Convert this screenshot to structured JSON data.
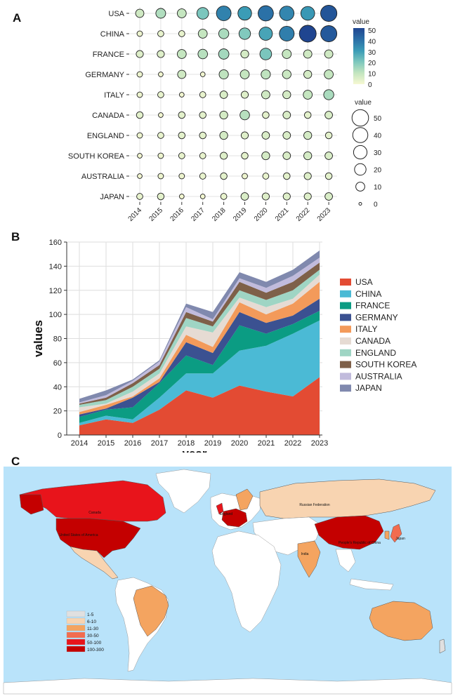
{
  "panels": {
    "a": "A",
    "b": "B",
    "c": "C"
  },
  "chart_data": [
    {
      "type": "scatter",
      "subtype": "bubble-heatmap",
      "years": [
        "2014",
        "2015",
        "2016",
        "2017",
        "2018",
        "2019",
        "2020",
        "2021",
        "2022",
        "2023"
      ],
      "countries": [
        "USA",
        "CHINA",
        "FRANCE",
        "GERMANY",
        "ITALY",
        "CANADA",
        "ENGLAND",
        "SOUTH KOREA",
        "AUSTRALIA",
        "JAPAN"
      ],
      "values": [
        [
          8,
          13,
          10,
          21,
          37,
          31,
          41,
          36,
          32,
          48
        ],
        [
          2,
          3,
          3,
          10,
          14,
          20,
          29,
          38,
          52,
          47
        ],
        [
          5,
          5,
          10,
          12,
          15,
          7,
          21,
          10,
          8,
          8
        ],
        [
          2,
          1,
          8,
          1,
          11,
          10,
          11,
          9,
          7,
          10
        ],
        [
          2,
          3,
          1,
          3,
          6,
          5,
          8,
          7,
          10,
          14
        ],
        [
          4,
          1,
          4,
          4,
          7,
          12,
          4,
          6,
          4,
          6
        ],
        [
          2,
          3,
          4,
          4,
          7,
          5,
          6,
          6,
          7,
          4
        ],
        [
          1,
          2,
          3,
          3,
          5,
          4,
          7,
          6,
          7,
          6
        ],
        [
          1,
          2,
          2,
          3,
          4,
          2,
          3,
          4,
          5,
          4
        ],
        [
          3,
          4,
          1,
          1,
          3,
          6,
          5,
          5,
          5,
          6
        ]
      ],
      "color_legend": {
        "title": "value",
        "ticks": [
          "50",
          "40",
          "30",
          "20",
          "10",
          "0"
        ],
        "max": 52,
        "colors": [
          "#f7f8d2",
          "#c3e5bf",
          "#7cc7bd",
          "#3a9bb6",
          "#2a6ea6",
          "#1f4590"
        ]
      },
      "size_legend": {
        "title": "value",
        "ticks": [
          50,
          40,
          30,
          20,
          10,
          0
        ]
      }
    },
    {
      "type": "area",
      "stacked": true,
      "x": [
        "2014",
        "2015",
        "2016",
        "2017",
        "2018",
        "2019",
        "2020",
        "2021",
        "2022",
        "2023"
      ],
      "xlabel": "year",
      "ylabel": "values",
      "ylim": [
        0,
        160
      ],
      "yticks": [
        "0",
        "20",
        "40",
        "60",
        "80",
        "100",
        "120",
        "140",
        "160"
      ],
      "series": [
        {
          "name": "USA",
          "color": "#e34b33",
          "values": [
            8,
            13,
            10,
            21,
            37,
            31,
            41,
            36,
            32,
            48
          ]
        },
        {
          "name": "CHINA",
          "color": "#4bbad5",
          "values": [
            2,
            3,
            3,
            10,
            14,
            20,
            29,
            38,
            52,
            47
          ]
        },
        {
          "name": "FRANCE",
          "color": "#0b9c83",
          "values": [
            5,
            5,
            10,
            12,
            15,
            7,
            21,
            10,
            8,
            8
          ]
        },
        {
          "name": "GERMANY",
          "color": "#3b5191",
          "values": [
            2,
            1,
            8,
            1,
            11,
            10,
            11,
            9,
            7,
            10
          ]
        },
        {
          "name": "ITALY",
          "color": "#f39a5a",
          "values": [
            2,
            3,
            1,
            3,
            6,
            5,
            8,
            7,
            10,
            14
          ]
        },
        {
          "name": "CANADA",
          "color": "#e6dbd3",
          "values": [
            4,
            1,
            4,
            4,
            7,
            12,
            4,
            6,
            4,
            6
          ]
        },
        {
          "name": "ENGLAND",
          "color": "#9fd5c4",
          "values": [
            2,
            3,
            4,
            4,
            7,
            5,
            6,
            6,
            7,
            4
          ]
        },
        {
          "name": "SOUTH KOREA",
          "color": "#7e6049",
          "values": [
            1,
            2,
            3,
            3,
            5,
            4,
            7,
            6,
            7,
            6
          ]
        },
        {
          "name": "AUSTRALIA",
          "color": "#c1bbdc",
          "values": [
            1,
            2,
            2,
            3,
            4,
            2,
            3,
            4,
            5,
            4
          ]
        },
        {
          "name": "JAPAN",
          "color": "#8089ae",
          "values": [
            3,
            4,
            1,
            1,
            3,
            6,
            5,
            5,
            5,
            6
          ]
        }
      ]
    },
    {
      "type": "map",
      "ocean_color": "#b9e3fa",
      "country_labels": [
        "Canada",
        "United States of America",
        "England",
        "Russian Federation",
        "People's Republic of China",
        "Japan",
        "India"
      ],
      "legend": [
        {
          "label": "1-5",
          "color": "#e0e0e0"
        },
        {
          "label": "6-10",
          "color": "#f8d4b1"
        },
        {
          "label": "11-30",
          "color": "#f4a460"
        },
        {
          "label": "30-50",
          "color": "#f26c4f"
        },
        {
          "label": "50-100",
          "color": "#e8141b"
        },
        {
          "label": "100-300",
          "color": "#c40000"
        }
      ]
    }
  ]
}
